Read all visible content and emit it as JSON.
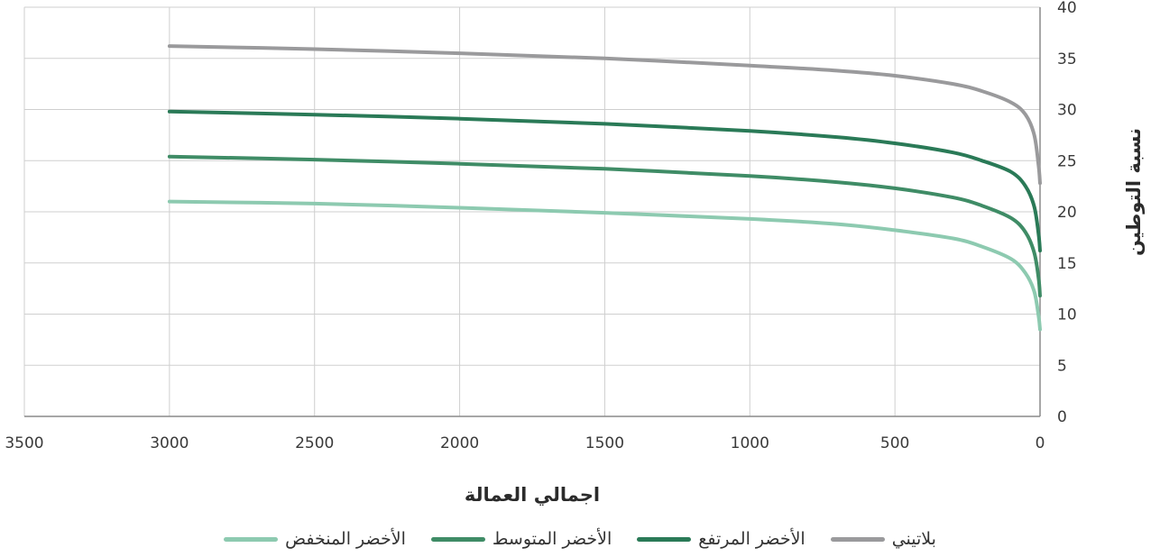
{
  "chart_data": {
    "type": "line",
    "xlabel": "اجمالي العمالة",
    "ylabel": "نسبة التوطين",
    "xlim": [
      3500,
      0
    ],
    "ylim": [
      0,
      40
    ],
    "x_ticks": [
      "3500",
      "3000",
      "2500",
      "2000",
      "1500",
      "1000",
      "500",
      "0"
    ],
    "y_ticks": [
      "0",
      "5",
      "10",
      "15",
      "20",
      "25",
      "30",
      "35",
      "40"
    ],
    "grid": true,
    "legend_position": "bottom",
    "series": [
      {
        "name": "بلاتيني",
        "color": "#9a9a9c",
        "points": [
          [
            3000,
            36.2
          ],
          [
            2500,
            35.9
          ],
          [
            2000,
            35.5
          ],
          [
            1500,
            35.0
          ],
          [
            1000,
            34.3
          ],
          [
            700,
            33.8
          ],
          [
            500,
            33.3
          ],
          [
            300,
            32.5
          ],
          [
            200,
            31.8
          ],
          [
            100,
            30.7
          ],
          [
            50,
            29.5
          ],
          [
            20,
            27.5
          ],
          [
            5,
            24.5
          ],
          [
            0,
            22.8
          ]
        ]
      },
      {
        "name": "الأخضر المرتفع",
        "color": "#2a7a57",
        "points": [
          [
            3000,
            29.8
          ],
          [
            2500,
            29.5
          ],
          [
            2000,
            29.1
          ],
          [
            1500,
            28.6
          ],
          [
            1000,
            27.9
          ],
          [
            700,
            27.3
          ],
          [
            500,
            26.7
          ],
          [
            300,
            25.8
          ],
          [
            200,
            25.0
          ],
          [
            100,
            23.9
          ],
          [
            50,
            22.5
          ],
          [
            20,
            20.5
          ],
          [
            5,
            17.8
          ],
          [
            0,
            16.2
          ]
        ]
      },
      {
        "name": "الأخضر المتوسط",
        "color": "#3f8c66",
        "points": [
          [
            3000,
            25.4
          ],
          [
            2500,
            25.1
          ],
          [
            2000,
            24.7
          ],
          [
            1500,
            24.2
          ],
          [
            1000,
            23.5
          ],
          [
            700,
            22.9
          ],
          [
            500,
            22.3
          ],
          [
            300,
            21.4
          ],
          [
            200,
            20.6
          ],
          [
            100,
            19.4
          ],
          [
            50,
            18.0
          ],
          [
            20,
            16.0
          ],
          [
            5,
            13.5
          ],
          [
            0,
            11.8
          ]
        ]
      },
      {
        "name": "الأخضر المنخفض",
        "color": "#8dcab0",
        "points": [
          [
            3000,
            21.0
          ],
          [
            2500,
            20.8
          ],
          [
            2000,
            20.4
          ],
          [
            1500,
            19.9
          ],
          [
            1000,
            19.3
          ],
          [
            700,
            18.8
          ],
          [
            500,
            18.2
          ],
          [
            300,
            17.4
          ],
          [
            200,
            16.6
          ],
          [
            100,
            15.4
          ],
          [
            50,
            14.0
          ],
          [
            20,
            12.2
          ],
          [
            5,
            9.8
          ],
          [
            0,
            8.5
          ]
        ]
      }
    ]
  }
}
